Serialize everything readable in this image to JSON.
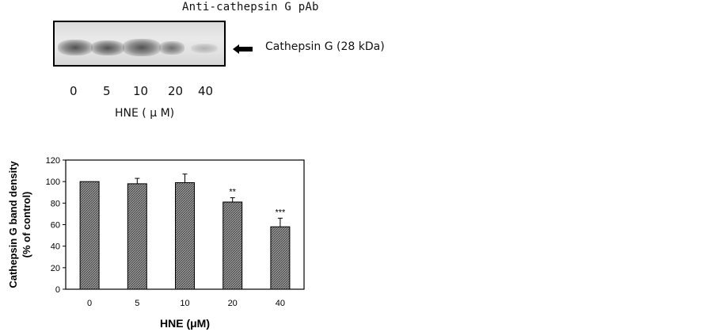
{
  "blot": {
    "title": "Anti-cathepsin G pAb",
    "band_label": "Cathepsin G (28 kDa)",
    "lanes": [
      "0",
      "5",
      "10",
      "20",
      "40"
    ],
    "xlabel": "HNE ( μ M)"
  },
  "chart_data": {
    "type": "bar",
    "title": "",
    "xlabel": "HNE (μM)",
    "ylabel": "Cathepsin G band density\n(% of control)",
    "ylabel_line1": "Cathepsin G band density",
    "ylabel_line2": "(% of control)",
    "ylim": [
      0,
      120
    ],
    "yticks": [
      "0",
      "20",
      "40",
      "60",
      "80",
      "100",
      "120"
    ],
    "categories": [
      "0",
      "5",
      "10",
      "20",
      "40"
    ],
    "values": [
      100,
      98,
      99,
      81,
      58
    ],
    "errors": [
      0,
      5,
      8,
      4,
      8
    ],
    "annotations": [
      "",
      "",
      "",
      "**",
      "***"
    ],
    "grid": false,
    "bar_fill": "hatched",
    "colors": {
      "bar_fill": "#777777",
      "bar_edge": "#000000",
      "axis": "#000000"
    }
  }
}
